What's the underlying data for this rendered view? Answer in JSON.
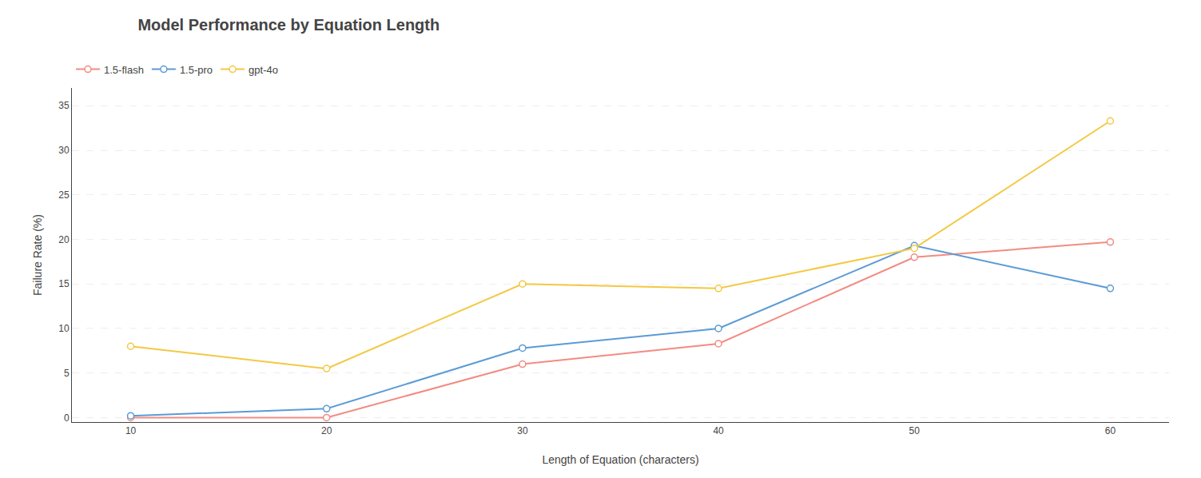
{
  "chart_data": {
    "type": "line",
    "title": "Model Performance by Equation Length",
    "x_label": "Length of Equation (characters)",
    "y_label": "Failure Rate (%)",
    "x": [
      10,
      20,
      30,
      40,
      50,
      60
    ],
    "series": [
      {
        "name": "1.5-flash",
        "color": "#F28B82",
        "values": [
          0,
          0,
          6,
          8.3,
          18,
          19.7
        ]
      },
      {
        "name": "1.5-pro",
        "color": "#5B9BD5",
        "values": [
          0.2,
          1.0,
          7.8,
          10,
          19.3,
          14.5
        ]
      },
      {
        "name": "gpt-4o",
        "color": "#F4C842",
        "values": [
          8,
          5.5,
          15,
          14.5,
          19,
          33.3
        ]
      }
    ],
    "xlim": [
      7,
      63
    ],
    "xticks": [
      10,
      20,
      30,
      40,
      50,
      60
    ],
    "ylim": [
      -0.5,
      37
    ],
    "yticks": [
      0,
      5,
      10,
      15,
      20,
      25,
      30,
      35
    ],
    "grid": true,
    "legend": "top",
    "marker": "circle"
  }
}
